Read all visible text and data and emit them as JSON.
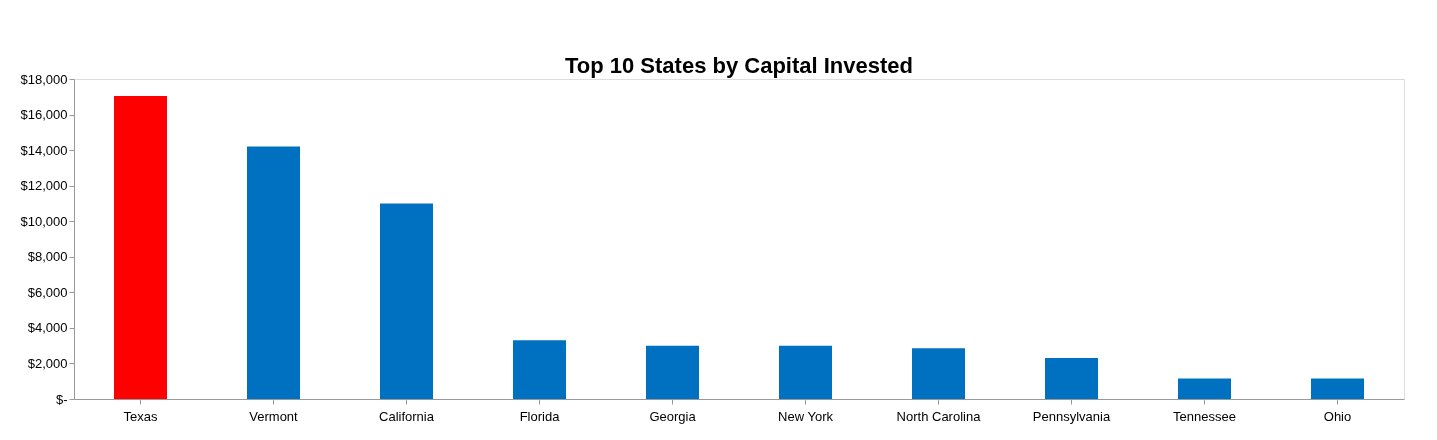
{
  "chart_data": {
    "type": "bar",
    "title": "Top 10 States by Capital Invested",
    "categories": [
      "Texas",
      "Vermont",
      "California",
      "Florida",
      "Georgia",
      "New York",
      "North Carolina",
      "Pennsylvania",
      "Tennessee",
      "Ohio"
    ],
    "values": [
      17050,
      14200,
      11000,
      3300,
      3000,
      3000,
      2850,
      2300,
      1150,
      1150
    ],
    "colors": [
      "#ff0000",
      "#0070c0",
      "#0070c0",
      "#0070c0",
      "#0070c0",
      "#0070c0",
      "#0070c0",
      "#0070c0",
      "#0070c0",
      "#0070c0"
    ],
    "ylim": [
      0,
      18000
    ],
    "yticks": [
      {
        "value": 0,
        "label": "$-"
      },
      {
        "value": 2000,
        "label": "$2,000"
      },
      {
        "value": 4000,
        "label": "$4,000"
      },
      {
        "value": 6000,
        "label": "$6,000"
      },
      {
        "value": 8000,
        "label": "$8,000"
      },
      {
        "value": 10000,
        "label": "$10,000"
      },
      {
        "value": 12000,
        "label": "$12,000"
      },
      {
        "value": 14000,
        "label": "$14,000"
      },
      {
        "value": 16000,
        "label": "$16,000"
      },
      {
        "value": 18000,
        "label": "$18,000"
      }
    ],
    "grid": false
  }
}
